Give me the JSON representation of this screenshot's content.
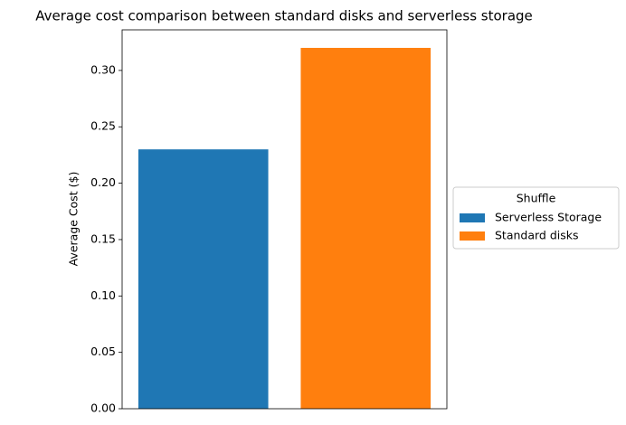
{
  "chart_data": {
    "type": "bar",
    "title": "Average cost comparison between standard disks and serverless storage",
    "ylabel": "Average Cost ($)",
    "legend_title": "Shuffle",
    "legend": "right",
    "series": [
      {
        "name": "Serverless Storage",
        "color": "#1f77b4",
        "values": [
          0.23
        ]
      },
      {
        "name": "Standard disks",
        "color": "#ff7f0e",
        "values": [
          0.32
        ]
      }
    ],
    "ylim": [
      0,
      0.336
    ],
    "yticks": [
      {
        "value": 0,
        "label": "0.00"
      },
      {
        "value": 0.05,
        "label": "0.05"
      },
      {
        "value": 0.1,
        "label": "0.10"
      },
      {
        "value": 0.15,
        "label": "0.15"
      },
      {
        "value": 0.2,
        "label": "0.20"
      },
      {
        "value": 0.25,
        "label": "0.25"
      },
      {
        "value": 0.3,
        "label": "0.30"
      }
    ],
    "grid": false
  }
}
